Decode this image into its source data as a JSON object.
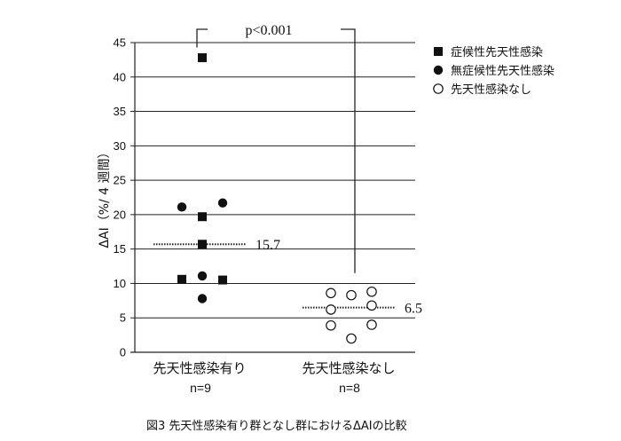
{
  "chart_data": {
    "type": "scatter",
    "ylabel": "ΔAI（%/ 4 週間）",
    "ylim": [
      0,
      45
    ],
    "yticks": [
      0,
      5,
      10,
      15,
      20,
      25,
      30,
      35,
      40,
      45
    ],
    "grid": true,
    "legend_position": "top-right",
    "categories": [
      {
        "label": "先天性感染有り",
        "n_label": "n=9"
      },
      {
        "label": "先天性感染なし",
        "n_label": "n=8"
      }
    ],
    "series": [
      {
        "name": "症候性先天性感染",
        "marker": "filled-square",
        "color": "#111111",
        "points": [
          {
            "category": 0,
            "offset": 0.0,
            "y": 42.8
          },
          {
            "category": 0,
            "offset": 0.0,
            "y": 19.7
          },
          {
            "category": 0,
            "offset": 0.0,
            "y": 15.7
          },
          {
            "category": 0,
            "offset": -1.0,
            "y": 10.6
          },
          {
            "category": 0,
            "offset": 1.0,
            "y": 10.5
          }
        ]
      },
      {
        "name": "無症候性先天性感染",
        "marker": "filled-circle",
        "color": "#111111",
        "points": [
          {
            "category": 0,
            "offset": -1.0,
            "y": 21.1
          },
          {
            "category": 0,
            "offset": 1.0,
            "y": 21.7
          },
          {
            "category": 0,
            "offset": 0.0,
            "y": 11.1
          },
          {
            "category": 0,
            "offset": 0.0,
            "y": 7.8
          }
        ]
      },
      {
        "name": "先天性感染なし",
        "marker": "open-circle",
        "color": "#111111",
        "points": [
          {
            "category": 1,
            "offset": -1.0,
            "y": 8.6
          },
          {
            "category": 1,
            "offset": 0.0,
            "y": 8.3
          },
          {
            "category": 1,
            "offset": 1.0,
            "y": 8.8
          },
          {
            "category": 1,
            "offset": -1.0,
            "y": 6.2
          },
          {
            "category": 1,
            "offset": 1.0,
            "y": 6.8
          },
          {
            "category": 1,
            "offset": -1.0,
            "y": 3.9
          },
          {
            "category": 1,
            "offset": 1.0,
            "y": 4.0
          },
          {
            "category": 1,
            "offset": 0.0,
            "y": 2.0
          }
        ]
      }
    ],
    "medians": [
      {
        "category": 0,
        "value": 15.7,
        "label": "15.7"
      },
      {
        "category": 1,
        "value": 6.5,
        "label": "6.5"
      }
    ],
    "annotation": {
      "text": "p<0.001",
      "type": "significance-bracket"
    },
    "caption": "図3  先天性感染有り群となし群におけるΔAIの比較"
  }
}
